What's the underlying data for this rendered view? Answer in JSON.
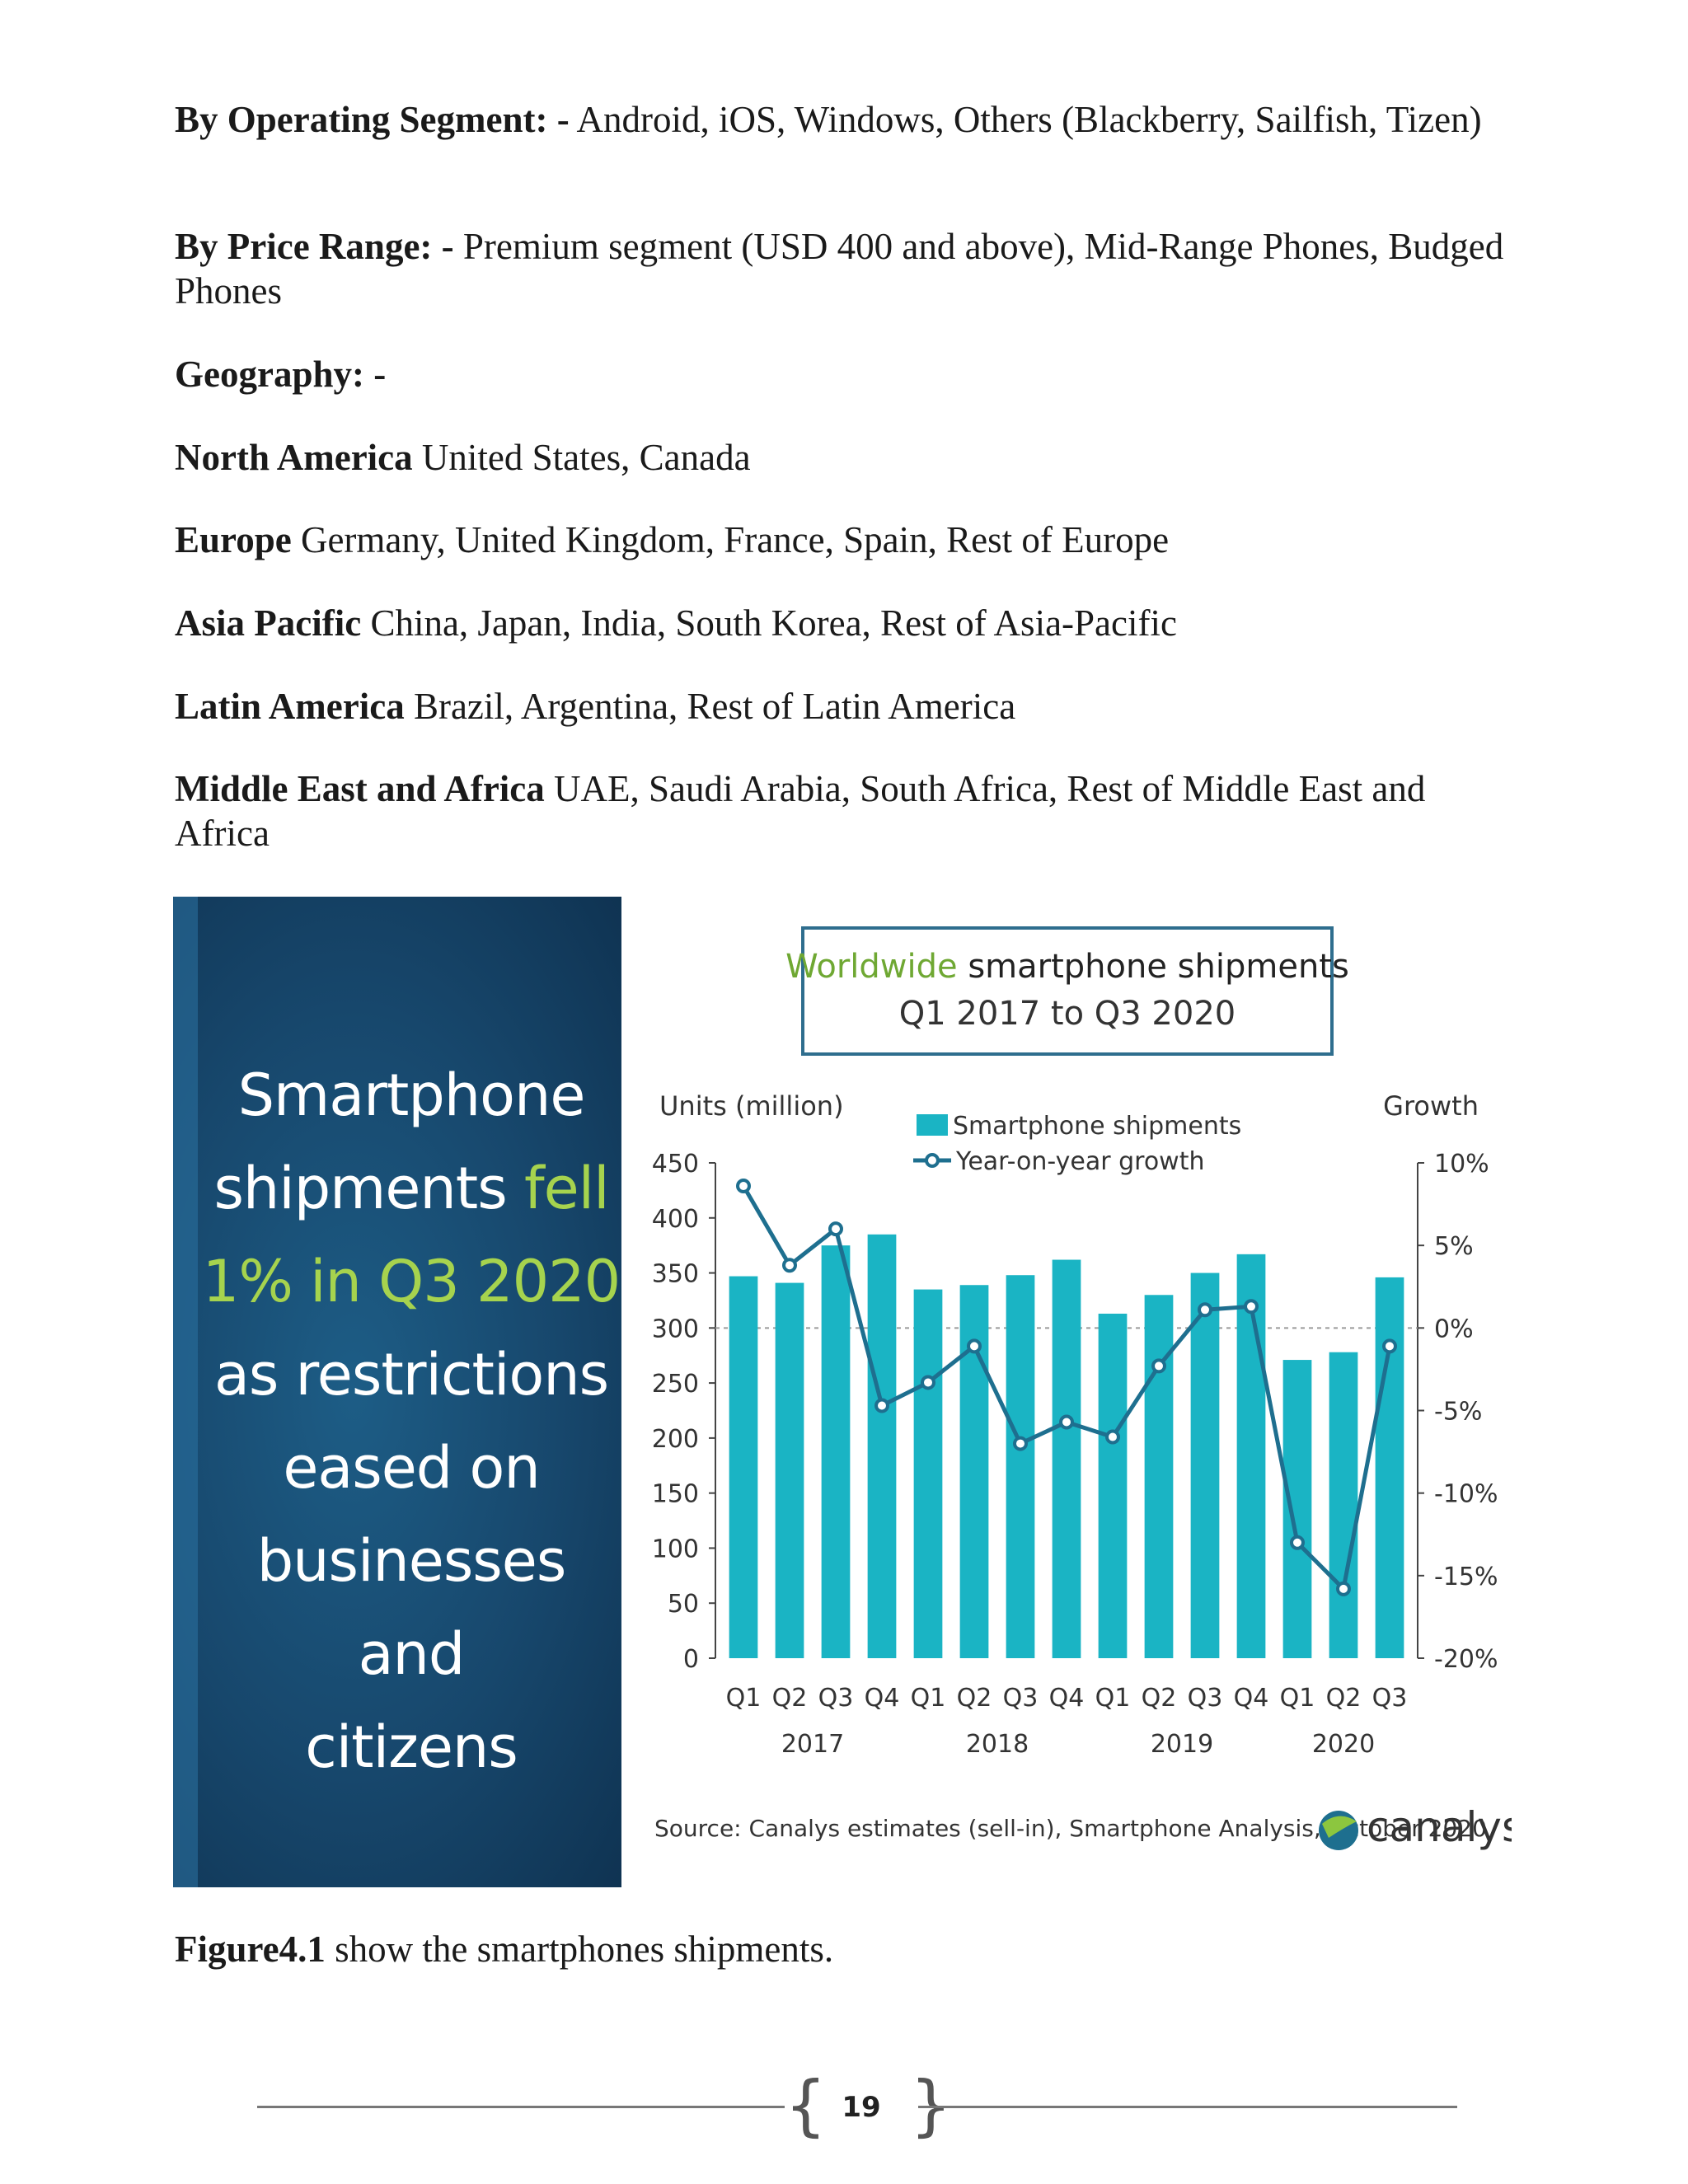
{
  "paragraphs": [
    {
      "label": "By Operating Segment: -",
      "text": " Android, iOS, Windows, Others (Blackberry, Sailfish, Tizen)"
    },
    {
      "label": "By Price Range: -",
      "text": " Premium segment (USD 400 and above), Mid-Range Phones, Budged Phones"
    },
    {
      "label": "Geography: -",
      "text": ""
    },
    {
      "label": "North America",
      "text": " United States, Canada"
    },
    {
      "label": "Europe",
      "text": " Germany, United Kingdom, France, Spain, Rest of Europe"
    },
    {
      "label": "Asia Pacific",
      "text": " China, Japan, India, South Korea, Rest of Asia-Pacific"
    },
    {
      "label": "Latin America",
      "text": " Brazil, Argentina, Rest of Latin America"
    },
    {
      "label": "Middle East and Africa",
      "text": " UAE, Saudi Arabia, South Africa, Rest of Middle East and Africa"
    }
  ],
  "banner": {
    "line1": "Smartphone",
    "line2_a": "shipments ",
    "line2_b": "fell",
    "line3": "1% in Q3 2020",
    "line4": "as restrictions",
    "line5": "eased on",
    "line6": "businesses and",
    "line7": "citizens",
    "highlight_color": "#a6d34e"
  },
  "chart_data": {
    "type": "bar",
    "title_highlight": "Worldwide",
    "title_rest": " smartphone shipments",
    "subtitle": "Q1 2017 to Q3 2020",
    "ylabel": "Units (million)",
    "y2label": "Growth",
    "ylim": [
      0,
      450
    ],
    "y_ticks": [
      "0",
      "50",
      "100",
      "150",
      "200",
      "250",
      "300",
      "350",
      "400",
      "450"
    ],
    "y2lim": [
      -20,
      10
    ],
    "y2_ticks": [
      "-20%",
      "-15%",
      "-10%",
      "-5%",
      "0%",
      "5%",
      "10%"
    ],
    "categories": [
      "Q1",
      "Q2",
      "Q3",
      "Q4",
      "Q1",
      "Q2",
      "Q3",
      "Q4",
      "Q1",
      "Q2",
      "Q3",
      "Q4",
      "Q1",
      "Q2",
      "Q3"
    ],
    "years": [
      {
        "label": "2017",
        "span": [
          0,
          3
        ]
      },
      {
        "label": "2018",
        "span": [
          4,
          7
        ]
      },
      {
        "label": "2019",
        "span": [
          8,
          11
        ]
      },
      {
        "label": "2020",
        "span": [
          12,
          14
        ]
      }
    ],
    "series": [
      {
        "name": "Smartphone shipments",
        "type": "bar",
        "axis": "left",
        "color": "#1ab4c4",
        "values": [
          347,
          341,
          375,
          385,
          335,
          339,
          348,
          362,
          313,
          330,
          350,
          367,
          271,
          278,
          346
        ]
      },
      {
        "name": "Year-on-year growth",
        "type": "line",
        "axis": "right",
        "color": "#1e6f8f",
        "values": [
          8.6,
          3.8,
          6.0,
          -4.7,
          -3.3,
          -1.1,
          -7.0,
          -5.7,
          -6.6,
          -2.3,
          1.1,
          1.3,
          -13.0,
          -15.8,
          -1.1
        ]
      }
    ],
    "legend_position": "top-center",
    "zero_reference_line": true,
    "source": "Source: Canalys estimates (sell-in), Smartphone Analysis, October 2020",
    "brand": "canalys"
  },
  "caption": {
    "label": "Figure4.1",
    "text": " show the smartphones shipments."
  },
  "footer": {
    "page_number": "19"
  }
}
